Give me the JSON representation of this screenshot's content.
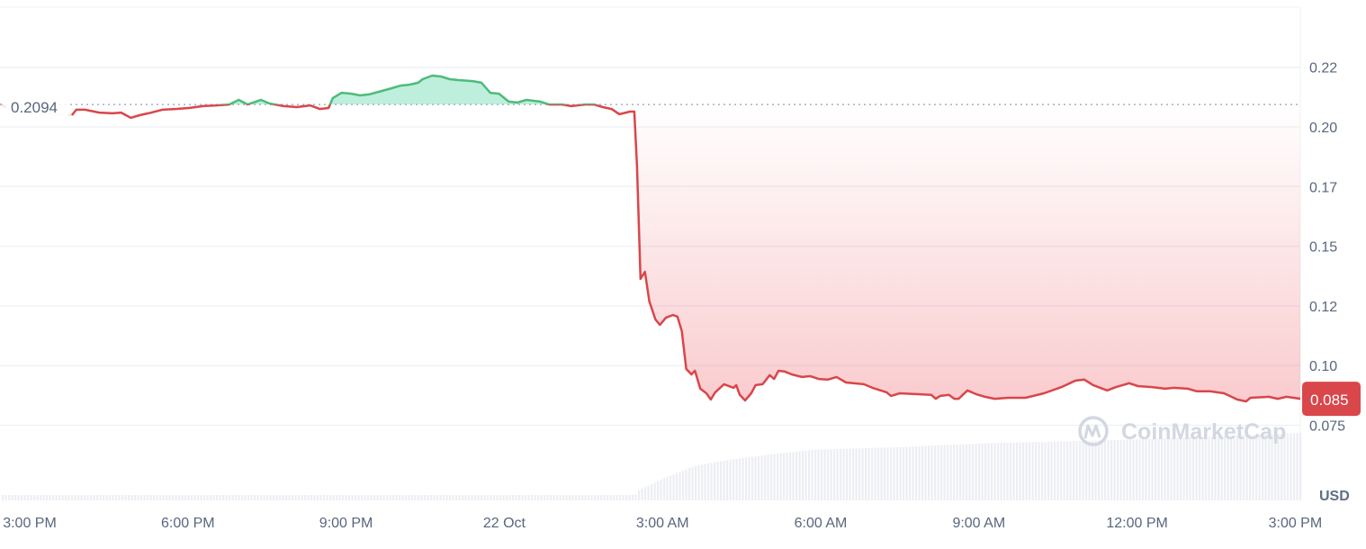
{
  "chart_data": {
    "type": "line",
    "title": "",
    "xlabel": "",
    "ylabel": "",
    "unit_label": "USD",
    "y_ticks": [
      {
        "value": 0.225,
        "label": "0.22"
      },
      {
        "value": 0.2,
        "label": "0.20"
      },
      {
        "value": 0.175,
        "label": "0.17"
      },
      {
        "value": 0.15,
        "label": "0.15"
      },
      {
        "value": 0.125,
        "label": "0.12"
      },
      {
        "value": 0.1,
        "label": "0.10"
      },
      {
        "value": 0.075,
        "label": "0.075"
      }
    ],
    "x_ticks": [
      {
        "time": "21 Oct 15:00",
        "label": "3:00 PM"
      },
      {
        "time": "21 Oct 18:00",
        "label": "6:00 PM"
      },
      {
        "time": "21 Oct 21:00",
        "label": "9:00 PM"
      },
      {
        "time": "22 Oct 00:00",
        "label": "22 Oct"
      },
      {
        "time": "22 Oct 03:00",
        "label": "3:00 AM"
      },
      {
        "time": "22 Oct 06:00",
        "label": "6:00 AM"
      },
      {
        "time": "22 Oct 09:00",
        "label": "9:00 AM"
      },
      {
        "time": "22 Oct 12:00",
        "label": "12:00 PM"
      },
      {
        "time": "22 Oct 15:00",
        "label": "3:00 PM"
      }
    ],
    "grid": true,
    "baseline": {
      "value": 0.2094,
      "label": "0.2094"
    },
    "current_price": {
      "value": 0.085,
      "label": "0.085"
    },
    "colors": {
      "up": "#16c784",
      "up_line": "#4cbc7a",
      "down": "#ea3943",
      "down_line": "#d9464a",
      "tag": "#d9474b",
      "grid": "#eff2f5",
      "volume": "#eceef3"
    },
    "watermark": "CoinMarketCap",
    "series": [
      {
        "points": [
          [
            "21 Oct 14:26",
            0.2098
          ],
          [
            "21 Oct 14:36",
            0.2075
          ],
          [
            "21 Oct 14:57",
            0.2064
          ],
          [
            "21 Oct 15:28",
            0.2057
          ],
          [
            "21 Oct 15:48",
            0.2049
          ],
          [
            "21 Oct 15:53",
            0.2072
          ],
          [
            "21 Oct 16:03",
            0.2072
          ],
          [
            "21 Oct 16:19",
            0.206
          ],
          [
            "21 Oct 16:34",
            0.2057
          ],
          [
            "21 Oct 16:44",
            0.206
          ],
          [
            "21 Oct 16:55",
            0.2038
          ],
          [
            "21 Oct 17:05",
            0.2049
          ],
          [
            "21 Oct 17:15",
            0.2057
          ],
          [
            "21 Oct 17:31",
            0.2072
          ],
          [
            "21 Oct 17:46",
            0.2075
          ],
          [
            "21 Oct 18:01",
            0.2079
          ],
          [
            "21 Oct 18:17",
            0.2087
          ],
          [
            "21 Oct 18:32",
            0.209
          ],
          [
            "21 Oct 18:47",
            0.2094
          ],
          [
            "21 Oct 18:58",
            0.2113
          ],
          [
            "21 Oct 19:08",
            0.2094
          ],
          [
            "21 Oct 19:23",
            0.2113
          ],
          [
            "21 Oct 19:33",
            0.2098
          ],
          [
            "21 Oct 19:49",
            0.2087
          ],
          [
            "21 Oct 20:04",
            0.2083
          ],
          [
            "21 Oct 20:19",
            0.209
          ],
          [
            "21 Oct 20:30",
            0.2075
          ],
          [
            "21 Oct 20:40",
            0.2079
          ],
          [
            "21 Oct 20:45",
            0.2121
          ],
          [
            "21 Oct 20:55",
            0.2143
          ],
          [
            "21 Oct 21:06",
            0.2139
          ],
          [
            "21 Oct 21:16",
            0.2132
          ],
          [
            "21 Oct 21:26",
            0.2136
          ],
          [
            "21 Oct 21:41",
            0.2151
          ],
          [
            "21 Oct 21:52",
            0.2162
          ],
          [
            "21 Oct 22:02",
            0.2173
          ],
          [
            "21 Oct 22:12",
            0.2177
          ],
          [
            "21 Oct 22:22",
            0.2185
          ],
          [
            "21 Oct 22:27",
            0.22
          ],
          [
            "21 Oct 22:38",
            0.2215
          ],
          [
            "21 Oct 22:48",
            0.2211
          ],
          [
            "21 Oct 22:58",
            0.22
          ],
          [
            "21 Oct 23:08",
            0.2196
          ],
          [
            "21 Oct 23:24",
            0.2192
          ],
          [
            "21 Oct 23:34",
            0.2185
          ],
          [
            "21 Oct 23:44",
            0.2143
          ],
          [
            "21 Oct 23:54",
            0.2139
          ],
          [
            "22 Oct 00:05",
            0.2106
          ],
          [
            "22 Oct 00:15",
            0.2102
          ],
          [
            "22 Oct 00:25",
            0.2113
          ],
          [
            "22 Oct 00:41",
            0.2106
          ],
          [
            "22 Oct 00:51",
            0.2094
          ],
          [
            "22 Oct 01:06",
            0.2094
          ],
          [
            "22 Oct 01:16",
            0.2087
          ],
          [
            "22 Oct 01:32",
            0.2094
          ],
          [
            "22 Oct 01:42",
            0.2094
          ],
          [
            "22 Oct 01:52",
            0.2083
          ],
          [
            "22 Oct 02:02",
            0.2075
          ],
          [
            "22 Oct 02:11",
            0.2053
          ],
          [
            "22 Oct 02:23",
            0.2064
          ],
          [
            "22 Oct 02:28",
            0.2064
          ],
          [
            "22 Oct 02:31",
            0.1834
          ],
          [
            "22 Oct 02:35",
            0.1363
          ],
          [
            "22 Oct 02:40",
            0.1393
          ],
          [
            "22 Oct 02:45",
            0.1269
          ],
          [
            "22 Oct 02:52",
            0.1193
          ],
          [
            "22 Oct 02:57",
            0.1171
          ],
          [
            "22 Oct 03:04",
            0.1201
          ],
          [
            "22 Oct 03:12",
            0.1212
          ],
          [
            "22 Oct 03:17",
            0.1205
          ],
          [
            "22 Oct 03:22",
            0.1144
          ],
          [
            "22 Oct 03:27",
            0.0986
          ],
          [
            "22 Oct 03:33",
            0.0963
          ],
          [
            "22 Oct 03:37",
            0.0978
          ],
          [
            "22 Oct 03:43",
            0.0903
          ],
          [
            "22 Oct 03:50",
            0.0884
          ],
          [
            "22 Oct 03:55",
            0.0858
          ],
          [
            "22 Oct 04:00",
            0.0888
          ],
          [
            "22 Oct 04:10",
            0.0922
          ],
          [
            "22 Oct 04:21",
            0.0907
          ],
          [
            "22 Oct 04:24",
            0.0918
          ],
          [
            "22 Oct 04:28",
            0.0877
          ],
          [
            "22 Oct 04:34",
            0.0854
          ],
          [
            "22 Oct 04:41",
            0.0884
          ],
          [
            "22 Oct 04:46",
            0.0918
          ],
          [
            "22 Oct 04:54",
            0.0922
          ],
          [
            "22 Oct 05:02",
            0.096
          ],
          [
            "22 Oct 05:07",
            0.0944
          ],
          [
            "22 Oct 05:12",
            0.0978
          ],
          [
            "22 Oct 05:19",
            0.0975
          ],
          [
            "22 Oct 05:27",
            0.0963
          ],
          [
            "22 Oct 05:39",
            0.0952
          ],
          [
            "22 Oct 05:48",
            0.0956
          ],
          [
            "22 Oct 05:58",
            0.0944
          ],
          [
            "22 Oct 06:08",
            0.0941
          ],
          [
            "22 Oct 06:18",
            0.0952
          ],
          [
            "22 Oct 06:29",
            0.0929
          ],
          [
            "22 Oct 06:49",
            0.0922
          ],
          [
            "22 Oct 06:59",
            0.0907
          ],
          [
            "22 Oct 07:15",
            0.0888
          ],
          [
            "22 Oct 07:20",
            0.0873
          ],
          [
            "22 Oct 07:30",
            0.0884
          ],
          [
            "22 Oct 07:51",
            0.088
          ],
          [
            "22 Oct 08:06",
            0.0877
          ],
          [
            "22 Oct 08:11",
            0.0861
          ],
          [
            "22 Oct 08:16",
            0.0873
          ],
          [
            "22 Oct 08:26",
            0.0877
          ],
          [
            "22 Oct 08:32",
            0.0861
          ],
          [
            "22 Oct 08:37",
            0.0861
          ],
          [
            "22 Oct 08:47",
            0.0896
          ],
          [
            "22 Oct 08:57",
            0.088
          ],
          [
            "22 Oct 09:07",
            0.0869
          ],
          [
            "22 Oct 09:18",
            0.0861
          ],
          [
            "22 Oct 09:33",
            0.0865
          ],
          [
            "22 Oct 09:53",
            0.0865
          ],
          [
            "22 Oct 10:14",
            0.0884
          ],
          [
            "22 Oct 10:34",
            0.091
          ],
          [
            "22 Oct 10:50",
            0.0937
          ],
          [
            "22 Oct 11:00",
            0.0941
          ],
          [
            "22 Oct 11:10",
            0.0918
          ],
          [
            "22 Oct 11:26",
            0.0896
          ],
          [
            "22 Oct 11:36",
            0.091
          ],
          [
            "22 Oct 11:51",
            0.0926
          ],
          [
            "22 Oct 12:01",
            0.0914
          ],
          [
            "22 Oct 12:17",
            0.091
          ],
          [
            "22 Oct 12:32",
            0.0903
          ],
          [
            "22 Oct 12:42",
            0.0907
          ],
          [
            "22 Oct 12:58",
            0.0903
          ],
          [
            "22 Oct 13:08",
            0.0892
          ],
          [
            "22 Oct 13:23",
            0.0892
          ],
          [
            "22 Oct 13:39",
            0.0884
          ],
          [
            "22 Oct 13:54",
            0.0858
          ],
          [
            "22 Oct 14:04",
            0.085
          ],
          [
            "22 Oct 14:09",
            0.0865
          ],
          [
            "22 Oct 14:30",
            0.0869
          ],
          [
            "22 Oct 14:40",
            0.0861
          ],
          [
            "22 Oct 14:50",
            0.0869
          ],
          [
            "22 Oct 15:06",
            0.0861
          ]
        ]
      }
    ],
    "volume_relative": [
      [
        "21 Oct 14:26",
        0.08
      ],
      [
        "22 Oct 02:28",
        0.08
      ],
      [
        "22 Oct 02:32",
        0.15
      ],
      [
        "22 Oct 03:04",
        0.35
      ],
      [
        "22 Oct 03:36",
        0.51
      ],
      [
        "22 Oct 04:09",
        0.59
      ],
      [
        "22 Oct 05:00",
        0.68
      ],
      [
        "22 Oct 05:51",
        0.75
      ],
      [
        "22 Oct 07:30",
        0.79
      ],
      [
        "22 Oct 09:12",
        0.85
      ],
      [
        "22 Oct 10:54",
        0.88
      ],
      [
        "22 Oct 12:36",
        0.92
      ],
      [
        "22 Oct 15:06",
        1.0
      ]
    ]
  }
}
